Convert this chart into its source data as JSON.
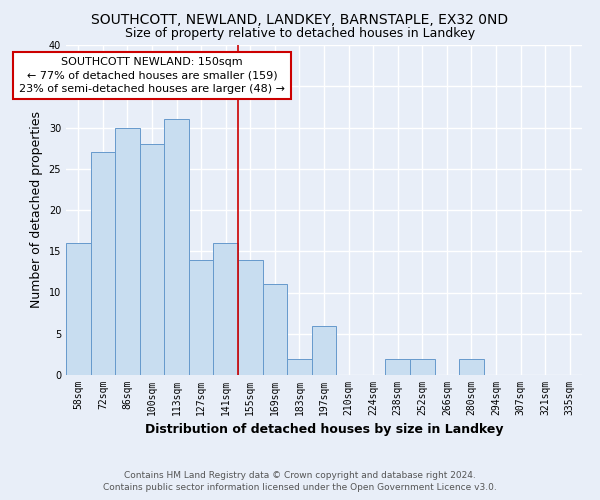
{
  "title": "SOUTHCOTT, NEWLAND, LANDKEY, BARNSTAPLE, EX32 0ND",
  "subtitle": "Size of property relative to detached houses in Landkey",
  "xlabel": "Distribution of detached houses by size in Landkey",
  "ylabel": "Number of detached properties",
  "footer_line1": "Contains HM Land Registry data © Crown copyright and database right 2024.",
  "footer_line2": "Contains public sector information licensed under the Open Government Licence v3.0.",
  "categories": [
    "58sqm",
    "72sqm",
    "86sqm",
    "100sqm",
    "113sqm",
    "127sqm",
    "141sqm",
    "155sqm",
    "169sqm",
    "183sqm",
    "197sqm",
    "210sqm",
    "224sqm",
    "238sqm",
    "252sqm",
    "266sqm",
    "280sqm",
    "294sqm",
    "307sqm",
    "321sqm",
    "335sqm"
  ],
  "values": [
    16,
    27,
    30,
    28,
    31,
    14,
    16,
    14,
    11,
    2,
    6,
    0,
    0,
    2,
    2,
    0,
    2,
    0,
    0,
    0,
    0
  ],
  "bar_color": "#c8ddf0",
  "bar_edge_color": "#6699cc",
  "highlight_line_color": "#cc0000",
  "annotation_title": "SOUTHCOTT NEWLAND: 150sqm",
  "annotation_line1": "← 77% of detached houses are smaller (159)",
  "annotation_line2": "23% of semi-detached houses are larger (48) →",
  "annotation_box_color": "#ffffff",
  "annotation_box_edge_color": "#cc0000",
  "ylim": [
    0,
    40
  ],
  "yticks": [
    0,
    5,
    10,
    15,
    20,
    25,
    30,
    35,
    40
  ],
  "background_color": "#e8eef8",
  "grid_color": "#ffffff",
  "title_fontsize": 10,
  "subtitle_fontsize": 9,
  "axis_label_fontsize": 9,
  "tick_fontsize": 7,
  "annotation_fontsize": 8,
  "footer_fontsize": 6.5
}
